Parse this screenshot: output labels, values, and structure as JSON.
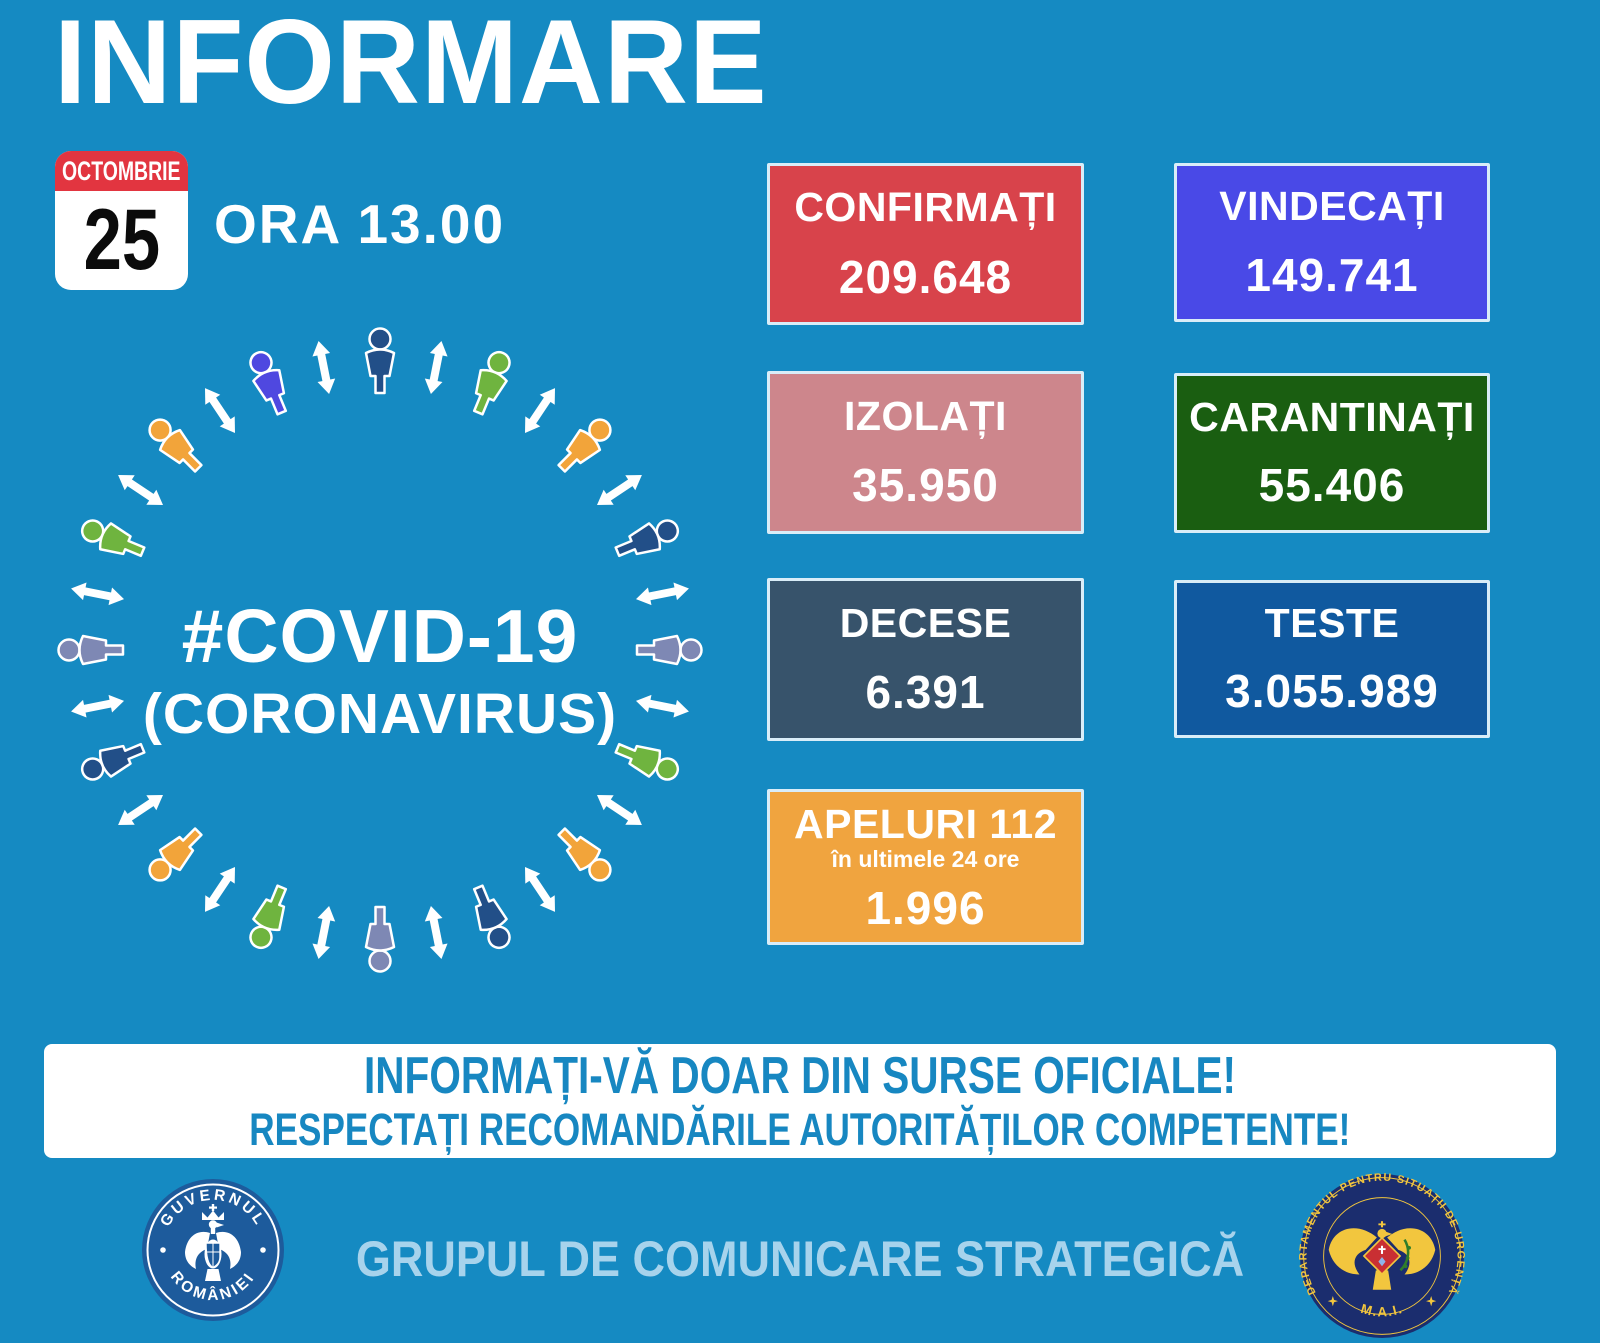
{
  "title": "INFORMARE",
  "date": {
    "month": "OCTOMBRIE",
    "day": "25",
    "time": "ORA 13.00"
  },
  "center": {
    "line1": "#COVID-19",
    "line2": "(CORONAVIRUS)",
    "arrow_color": "#ffffff",
    "people_colors": [
      "#224f88",
      "#6fb43f",
      "#f2a43a",
      "#224f88",
      "#7e88b4",
      "#6fb43f",
      "#f2a43a",
      "#224f88",
      "#7e88b4",
      "#6fb43f",
      "#f2a43a",
      "#224f88",
      "#7e88b4",
      "#6fb43f",
      "#f2a43a",
      "#4f48e0"
    ]
  },
  "stats": [
    {
      "label": "CONFIRMAȚI",
      "value": "209.648",
      "bg": "#d8434b"
    },
    {
      "label": "VINDECAȚI",
      "value": "149.741",
      "bg": "#4949e7"
    },
    {
      "label": "IZOLAȚI",
      "value": "35.950",
      "bg": "#cd868c"
    },
    {
      "label": "CARANTINAȚI",
      "value": "55.406",
      "bg": "#1a5e11"
    },
    {
      "label": "DECESE",
      "value": "6.391",
      "bg": "#37536b"
    },
    {
      "label": "TESTE",
      "value": "3.055.989",
      "bg": "#10599f"
    },
    {
      "label": "APELURI 112",
      "sublabel": "în ultimele 24 ore",
      "value": "1.996",
      "bg": "#f0a43f"
    }
  ],
  "banner": {
    "line1": "INFORMAȚI-VĂ DOAR DIN SURSE OFICIALE!",
    "line2": "RESPECTAȚI RECOMANDĂRILE AUTORITĂȚILOR COMPETENTE!"
  },
  "footer": {
    "text": "GRUPUL DE COMUNICARE STRATEGICĂ",
    "left_logo": {
      "top_text": "GUVERNUL",
      "bottom_text": "ROMÂNIEI"
    },
    "right_logo": {
      "ring_text": "DEPARTAMENTUL PENTRU SITUAȚII DE URGENȚĂ",
      "bottom_text": "M.A.I."
    }
  },
  "colors": {
    "background": "#158ac2",
    "box_border": "#d9edf8",
    "calendar_red": "#e23540",
    "banner_text": "#1787c1",
    "footer_text": "#a7d3ec",
    "gov_logo_blue": "#1d5b9c",
    "dsu_navy": "#1b2d6e",
    "dsu_gold": "#f2c63e",
    "dsu_red": "#c92f33"
  }
}
